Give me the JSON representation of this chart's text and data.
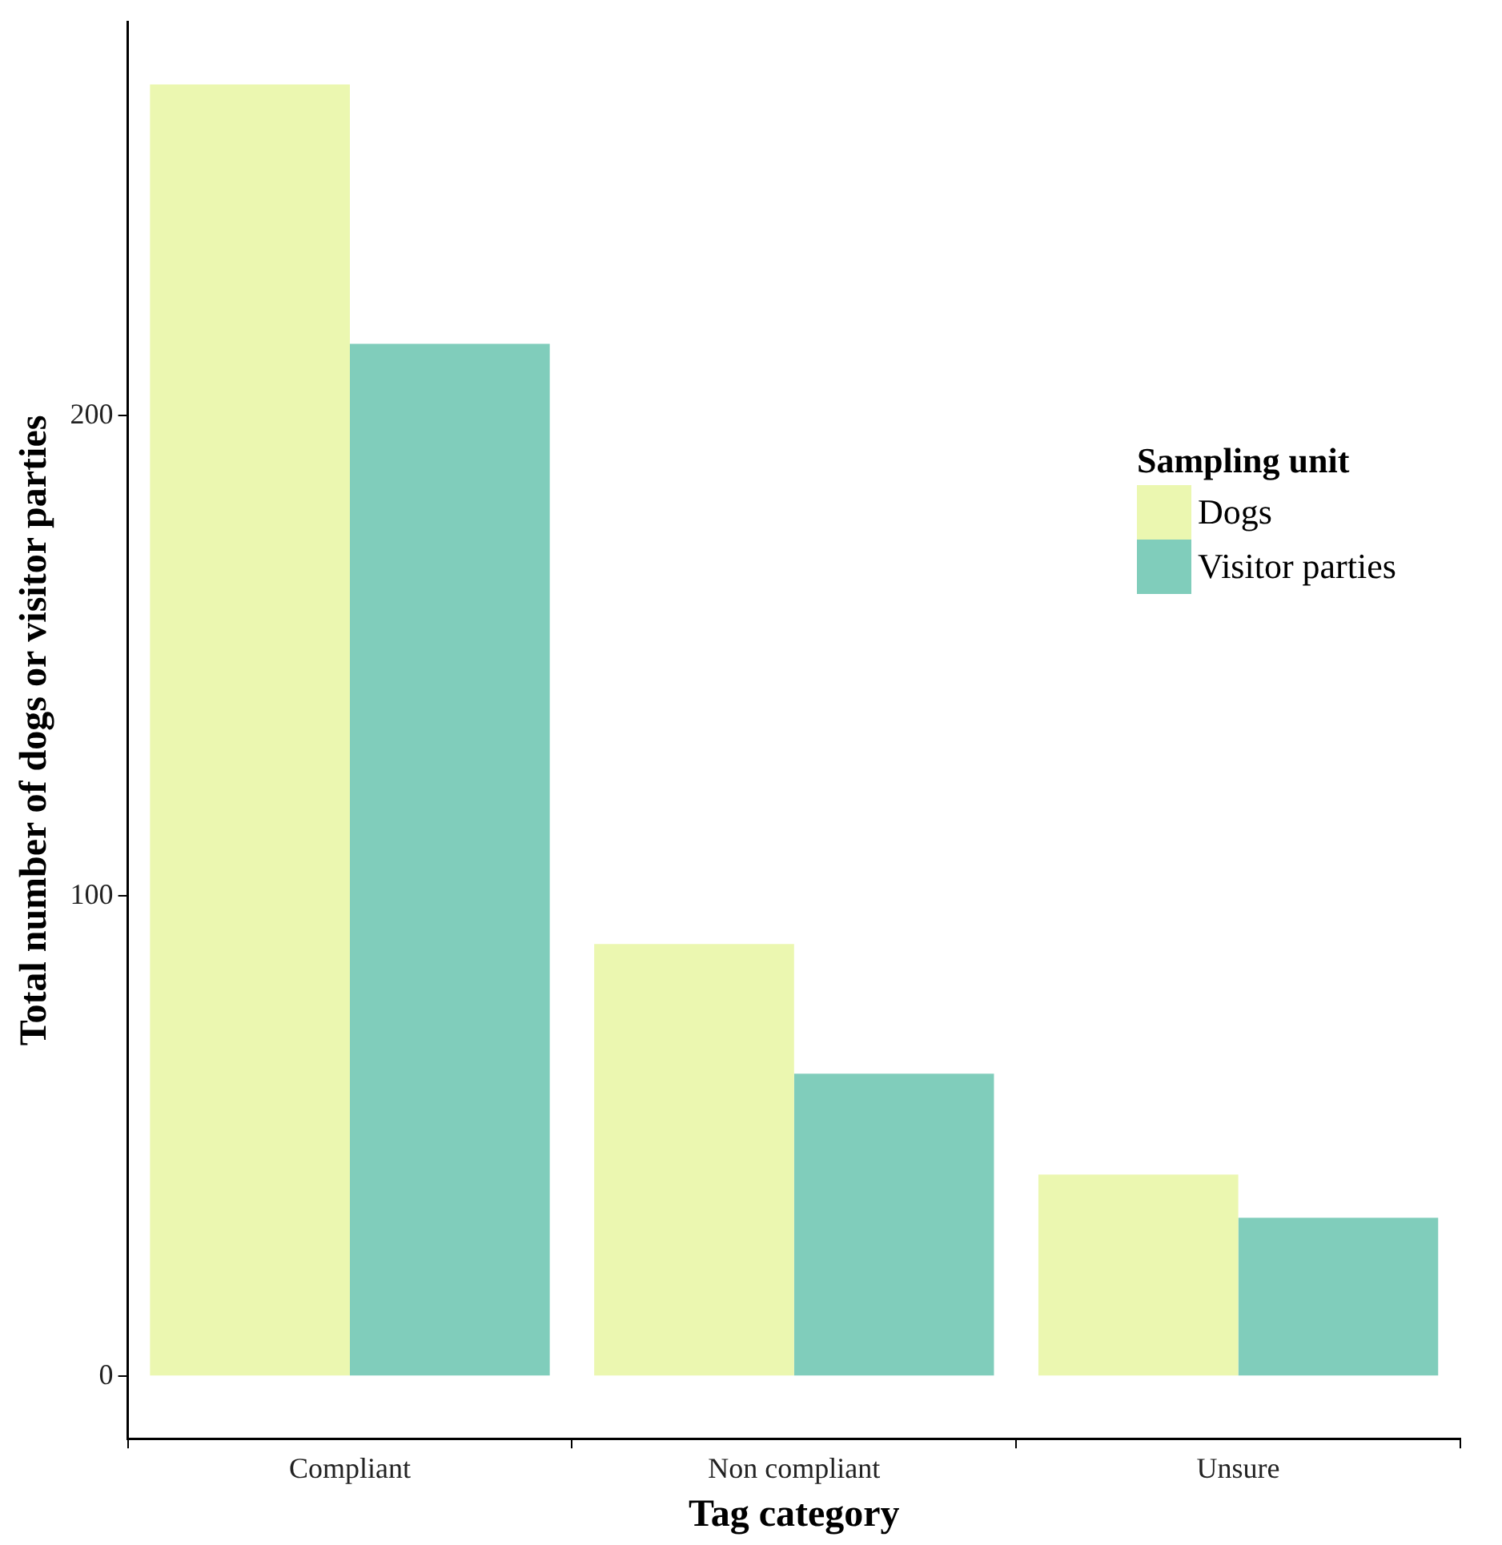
{
  "chart_data": {
    "type": "bar",
    "xlabel": "Tag category",
    "ylabel": "Total number of dogs or visitor parties",
    "legend_title": "Sampling unit",
    "categories": [
      "Compliant",
      "Non compliant",
      "Unsure"
    ],
    "series": [
      {
        "name": "Dogs",
        "color": "#ebf7b0",
        "values": [
          269,
          90,
          42
        ]
      },
      {
        "name": "Visitor parties",
        "color": "#80cdbb",
        "values": [
          215,
          63,
          33
        ]
      }
    ],
    "ylim": [
      -13,
      282
    ],
    "yticks": [
      0,
      100,
      200
    ],
    "grid": false,
    "legend": "right"
  }
}
